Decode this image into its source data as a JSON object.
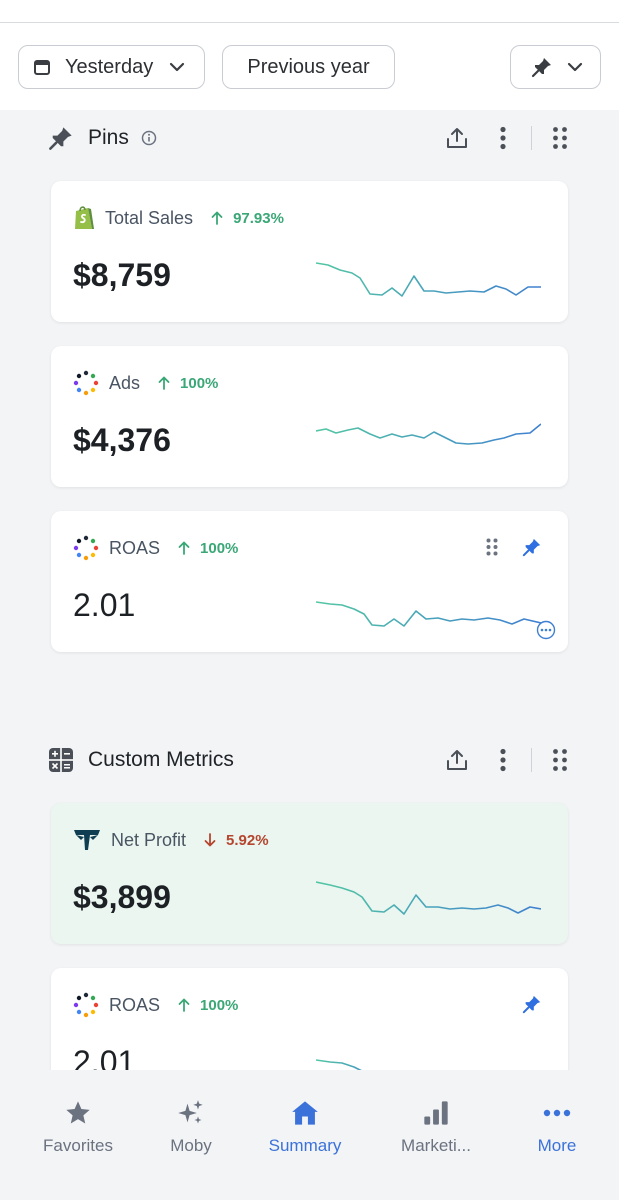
{
  "filters": {
    "date_label": "Yesterday",
    "compare_label": "Previous year"
  },
  "pins": {
    "title": "Pins",
    "cards": [
      {
        "name": "Total Sales",
        "change": "97.93%",
        "direction": "up",
        "value": "$8,759",
        "source": "shopify-icon"
      },
      {
        "name": "Ads",
        "change": "100%",
        "direction": "up",
        "value": "$4,376",
        "source": "multi-source-icon"
      },
      {
        "name": "ROAS",
        "change": "100%",
        "direction": "up",
        "value": "2.01",
        "source": "multi-source-icon"
      }
    ]
  },
  "custom_metrics": {
    "title": "Custom Metrics",
    "cards": [
      {
        "name": "Net Profit",
        "change": "5.92%",
        "direction": "down",
        "value": "$3,899",
        "source": "triple-whale-icon"
      },
      {
        "name": "ROAS",
        "change": "100%",
        "direction": "up",
        "value": "2.01",
        "source": "multi-source-icon"
      }
    ]
  },
  "bottom_nav": {
    "items": [
      {
        "label": "Favorites",
        "icon": "star-icon"
      },
      {
        "label": "Moby",
        "icon": "sparkles-icon"
      },
      {
        "label": "Summary",
        "icon": "home-icon",
        "active": true
      },
      {
        "label": "Marketi...",
        "icon": "bar-chart-icon"
      },
      {
        "label": "More",
        "icon": "ellipsis-icon"
      }
    ]
  },
  "colors": {
    "accent": "#3b72d9",
    "positive": "#3aa776",
    "negative": "#b5452e",
    "highlight_card": "#eaf6ef"
  }
}
